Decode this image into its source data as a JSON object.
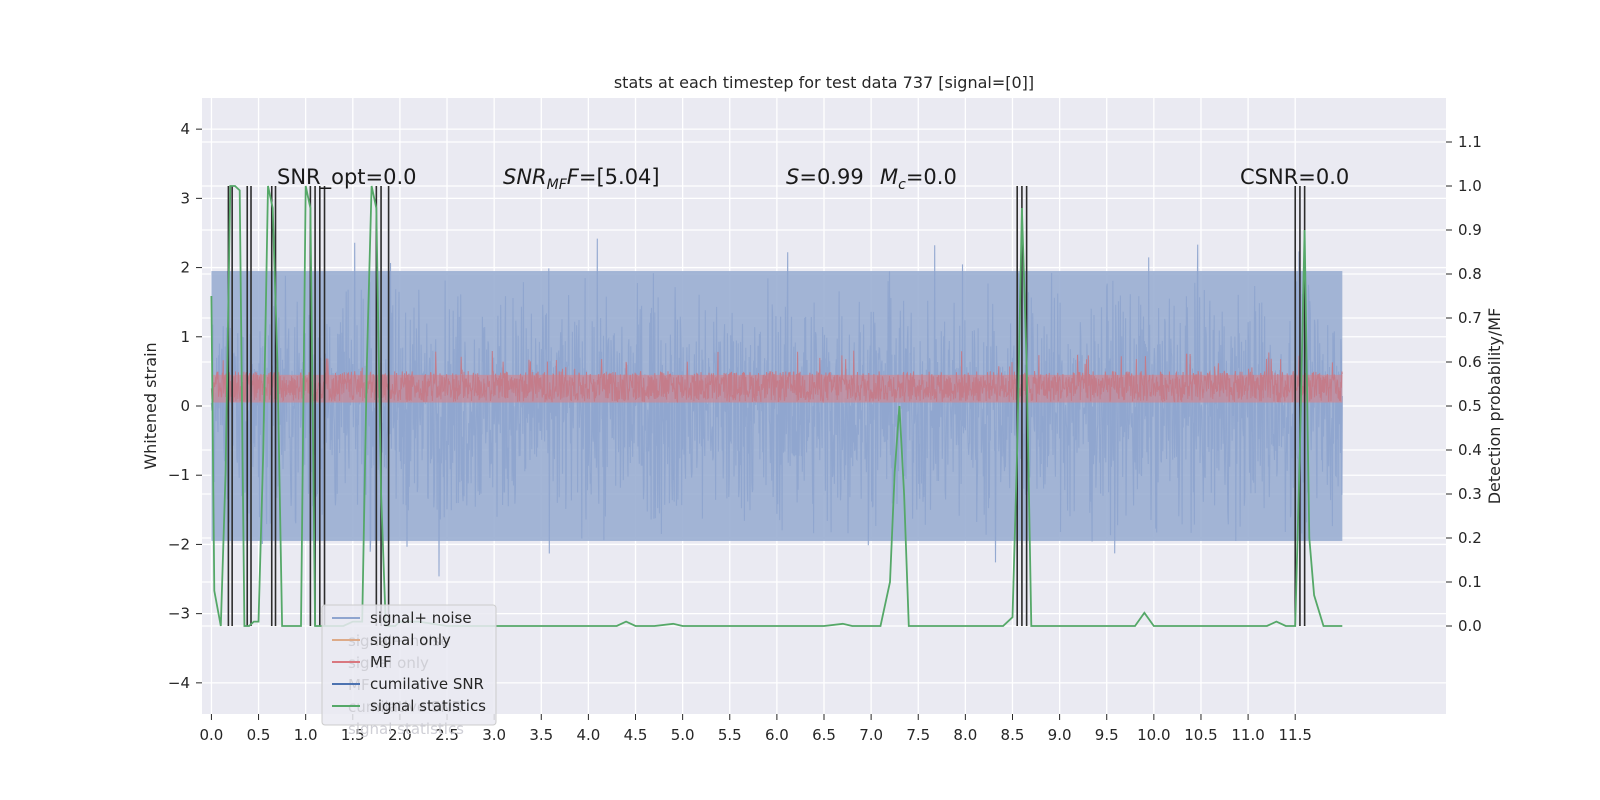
{
  "chart_data": {
    "type": "line",
    "title": "stats at each timestep for test data 737 [signal=[0]]",
    "xlabel": "",
    "ylabel": "Whitened strain",
    "y2label": "Detection probability/MF",
    "xlim": [
      -0.1,
      13.1
    ],
    "ylim": [
      -4.45,
      4.45
    ],
    "y2lim": [
      -0.2,
      1.2
    ],
    "x_ticks": [
      "0.0",
      "0.5",
      "1.0",
      "1.5",
      "2.0",
      "2.5",
      "3.0",
      "3.5",
      "4.0",
      "4.5",
      "5.0",
      "5.5",
      "6.0",
      "6.5",
      "7.0",
      "7.5",
      "8.0",
      "8.5",
      "9.0",
      "9.5",
      "10.0",
      "10.5",
      "11.0",
      "11.5"
    ],
    "y_ticks": [
      "4",
      "3",
      "2",
      "1",
      "0",
      "−1",
      "−2",
      "−3",
      "−4"
    ],
    "y2_ticks": [
      "1.1",
      "1.0",
      "0.9",
      "0.8",
      "0.7",
      "0.6",
      "0.5",
      "0.4",
      "0.3",
      "0.2",
      "0.1",
      "0.0"
    ],
    "grid": true,
    "legend_placement": "lower-left",
    "annotations": {
      "snr_opt": "SNR_opt=0.0",
      "snr_mf_var": "SNR",
      "snr_mf_sub": "MF",
      "snr_mf_rest": "=[5.04]",
      "s_var": "S",
      "s_rest": "=0.99",
      "mc_var": "M",
      "mc_sub": "c",
      "mc_rest": "=0.0",
      "csnr": "CSNR=0.0"
    },
    "legend": [
      {
        "label": "signal+ noise",
        "color": "#8fa5cf"
      },
      {
        "label": "signal only",
        "color": "#ddaa88"
      },
      {
        "label": "MF",
        "color": "#d9777f"
      },
      {
        "label": "cumilative SNR",
        "color": "#4c72b0"
      },
      {
        "label": "signal statistics",
        "color": "#55a868"
      }
    ],
    "legend_ghost": [
      "signal+ noise",
      "signal only",
      "MF",
      "cumilative SNR",
      "signal statistics"
    ],
    "series": [
      {
        "name": "signal statistics",
        "axis": "right",
        "color": "#55a868",
        "x": [
          0.0,
          0.03,
          0.1,
          0.15,
          0.2,
          0.25,
          0.3,
          0.35,
          0.4,
          0.45,
          0.5,
          0.55,
          0.6,
          0.65,
          0.7,
          0.75,
          0.8,
          0.85,
          0.9,
          0.95,
          1.0,
          1.05,
          1.1,
          1.15,
          1.2,
          1.25,
          1.3,
          1.35,
          1.4,
          1.5,
          1.6,
          1.65,
          1.7,
          1.75,
          1.8,
          1.85,
          1.9,
          1.95,
          2.0,
          2.1,
          2.2,
          2.5,
          3.0,
          3.5,
          4.0,
          4.3,
          4.4,
          4.5,
          4.7,
          4.9,
          5.0,
          5.2,
          5.5,
          6.0,
          6.5,
          6.7,
          6.8,
          7.0,
          7.1,
          7.2,
          7.25,
          7.3,
          7.35,
          7.4,
          7.5,
          8.0,
          8.4,
          8.5,
          8.55,
          8.6,
          8.65,
          8.7,
          8.75,
          9.0,
          9.5,
          9.8,
          9.9,
          10.0,
          10.5,
          11.0,
          11.2,
          11.3,
          11.4,
          11.5,
          11.55,
          11.6,
          11.65,
          11.7,
          11.8,
          11.9,
          12.0
        ],
        "y": [
          0.75,
          0.08,
          0.0,
          0.35,
          1.0,
          1.0,
          0.99,
          0.0,
          0.0,
          0.01,
          0.01,
          0.4,
          1.0,
          0.95,
          0.6,
          0.0,
          0.0,
          0.0,
          0.0,
          0.0,
          1.0,
          0.95,
          0.0,
          0.0,
          0.0,
          0.0,
          0.0,
          0.0,
          0.0,
          0.01,
          0.01,
          0.6,
          1.0,
          0.95,
          0.3,
          0.0,
          0.0,
          0.0,
          0.01,
          0.01,
          0.01,
          0.0,
          0.0,
          0.0,
          0.0,
          0.0,
          0.01,
          0.0,
          0.0,
          0.005,
          0.0,
          0.0,
          0.0,
          0.0,
          0.0,
          0.005,
          0.0,
          0.0,
          0.0,
          0.1,
          0.35,
          0.5,
          0.3,
          0.0,
          0.0,
          0.0,
          0.0,
          0.02,
          0.4,
          0.95,
          0.6,
          0.0,
          0.0,
          0.0,
          0.0,
          0.0,
          0.03,
          0.0,
          0.0,
          0.0,
          0.0,
          0.01,
          0.0,
          0.0,
          0.4,
          0.9,
          0.2,
          0.07,
          0.0,
          0.0,
          0.0
        ]
      },
      {
        "name": "cumilative SNR",
        "axis": "right",
        "color": "#2d2d2d",
        "spikes_x": [
          0.18,
          0.22,
          0.38,
          0.42,
          0.64,
          0.68,
          1.05,
          1.1,
          1.15,
          1.2,
          1.75,
          1.8,
          1.88,
          8.55,
          8.6,
          8.65,
          11.5,
          11.55,
          11.6
        ]
      }
    ]
  }
}
